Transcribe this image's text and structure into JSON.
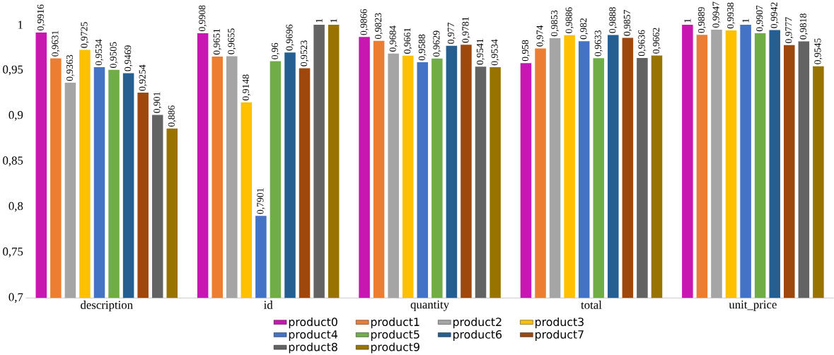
{
  "chart_data": {
    "type": "bar",
    "categories": [
      "description",
      "id",
      "quantity",
      "total",
      "unit_price"
    ],
    "series": [
      {
        "name": "product0",
        "color": "#c717b0",
        "values": [
          0.9916,
          0.9908,
          0.9866,
          0.958,
          1
        ],
        "value_labels": [
          "0,9916",
          "0,9908",
          "0,9866",
          "0,958",
          "1"
        ]
      },
      {
        "name": "product1",
        "color": "#ed7d31",
        "values": [
          0.9631,
          0.9651,
          0.9823,
          0.974,
          0.9889
        ],
        "value_labels": [
          "0,9631",
          "0,9651",
          "0,9823",
          "0,974",
          "0,9889"
        ]
      },
      {
        "name": "product2",
        "color": "#a5a5a5",
        "values": [
          0.9363,
          0.9655,
          0.9684,
          0.9853,
          0.9947
        ],
        "value_labels": [
          "0,9363",
          "0,9655",
          "0,9684",
          "0,9853",
          "0,9947"
        ]
      },
      {
        "name": "product3",
        "color": "#ffc000",
        "values": [
          0.9725,
          0.9148,
          0.9661,
          0.9886,
          0.9938
        ],
        "value_labels": [
          "0,9725",
          "0,9148",
          "0,9661",
          "0,9886",
          "0,9938"
        ]
      },
      {
        "name": "product4",
        "color": "#4472c4",
        "values": [
          0.9534,
          0.7901,
          0.9588,
          0.982,
          1
        ],
        "value_labels": [
          "0,9534",
          "0,7901",
          "0,9588",
          "0,982",
          "1"
        ]
      },
      {
        "name": "product5",
        "color": "#70ad47",
        "values": [
          0.9505,
          0.96,
          0.9629,
          0.9633,
          0.9907
        ],
        "value_labels": [
          "0,9505",
          "0,96",
          "0,9629",
          "0,9633",
          "0,9907"
        ]
      },
      {
        "name": "product6",
        "color": "#255e91",
        "values": [
          0.9469,
          0.9696,
          0.977,
          0.9888,
          0.9942
        ],
        "value_labels": [
          "0,9469",
          "0,9696",
          "0,977",
          "0,9888",
          "0,9942"
        ]
      },
      {
        "name": "product7",
        "color": "#9e480e",
        "values": [
          0.9254,
          0.9523,
          0.9781,
          0.9857,
          0.9777
        ],
        "value_labels": [
          "0,9254",
          "0,9523",
          "0,9781",
          "0,9857",
          "0,9777"
        ]
      },
      {
        "name": "product8",
        "color": "#636363",
        "values": [
          0.901,
          1,
          0.9541,
          0.9636,
          0.9818
        ],
        "value_labels": [
          "0,901",
          "1",
          "0,9541",
          "0,9636",
          "0,9818"
        ]
      },
      {
        "name": "product9",
        "color": "#997300",
        "values": [
          0.886,
          1,
          0.9534,
          0.9662,
          0.9545
        ],
        "value_labels": [
          "0,886",
          "1",
          "0,9534",
          "0,9662",
          "0,9545"
        ]
      }
    ],
    "ylim": [
      0.7,
      1
    ],
    "yticks": [
      {
        "value": 0.7,
        "label": "0,7"
      },
      {
        "value": 0.75,
        "label": "0,75"
      },
      {
        "value": 0.8,
        "label": "0,8"
      },
      {
        "value": 0.85,
        "label": "0,85"
      },
      {
        "value": 0.9,
        "label": "0,9"
      },
      {
        "value": 0.95,
        "label": "0,95"
      },
      {
        "value": 1,
        "label": "1"
      }
    ],
    "grid": false,
    "legend": "bottom"
  }
}
